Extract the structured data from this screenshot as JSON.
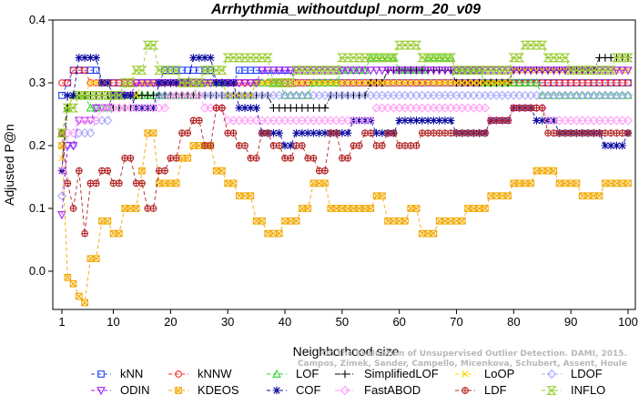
{
  "chart_data": {
    "type": "line",
    "title": "Arrhythmia_withoutdupl_norm_20_v09",
    "xlabel": "Neighborhood size",
    "ylabel": "Adjusted P@n",
    "xlim": [
      1,
      100
    ],
    "ylim": [
      -0.05,
      0.4
    ],
    "x_ticks": [
      1,
      10,
      20,
      30,
      40,
      50,
      60,
      70,
      80,
      90,
      100
    ],
    "y_ticks": [
      0.0,
      0.1,
      0.2,
      0.3,
      0.4
    ],
    "y_tick_labels": [
      "0.0",
      "0.1",
      "0.2",
      "0.3",
      "0.4"
    ],
    "grid": false,
    "legend_position": "bottom",
    "watermark": [
      "On the Evaluation of Unsupervised Outlier Detection. DAMI, 2015.",
      "Campos, Zimek, Sander, Campello, Micenkova, Schubert, Assent, Houle"
    ],
    "series": [
      {
        "name": "kNN",
        "color": "#1f3fff",
        "marker": "square",
        "dash": "4,3",
        "anchors": [
          [
            1,
            0.28
          ],
          [
            2,
            0.3
          ],
          [
            3,
            0.32
          ],
          [
            5,
            0.32
          ],
          [
            8,
            0.3
          ],
          [
            10,
            0.3
          ],
          [
            13,
            0.3
          ],
          [
            16,
            0.3
          ],
          [
            19,
            0.32
          ],
          [
            24,
            0.32
          ],
          [
            28,
            0.3
          ],
          [
            32,
            0.32
          ],
          [
            38,
            0.32
          ],
          [
            40,
            0.32
          ],
          [
            42,
            0.3
          ],
          [
            50,
            0.3
          ],
          [
            55,
            0.3
          ],
          [
            60,
            0.3
          ],
          [
            70,
            0.3
          ],
          [
            80,
            0.3
          ],
          [
            90,
            0.3
          ],
          [
            100,
            0.3
          ]
        ]
      },
      {
        "name": "kNNW",
        "color": "#ff2a2a",
        "marker": "circle",
        "dash": "4,3",
        "anchors": [
          [
            1,
            0.3
          ],
          [
            2,
            0.3
          ],
          [
            3,
            0.32
          ],
          [
            6,
            0.3
          ],
          [
            10,
            0.3
          ],
          [
            14,
            0.3
          ],
          [
            18,
            0.3
          ],
          [
            22,
            0.3
          ],
          [
            28,
            0.3
          ],
          [
            34,
            0.3
          ],
          [
            40,
            0.3
          ],
          [
            50,
            0.3
          ],
          [
            60,
            0.3
          ],
          [
            70,
            0.3
          ],
          [
            80,
            0.3
          ],
          [
            90,
            0.3
          ],
          [
            100,
            0.3
          ]
        ]
      },
      {
        "name": "LOF",
        "color": "#2fd12f",
        "marker": "triangle",
        "dash": "4,3",
        "anchors": [
          [
            1,
            0.22
          ],
          [
            2,
            0.26
          ],
          [
            3,
            0.28
          ],
          [
            6,
            0.26
          ],
          [
            10,
            0.28
          ],
          [
            15,
            0.28
          ],
          [
            20,
            0.28
          ],
          [
            25,
            0.3
          ],
          [
            30,
            0.28
          ],
          [
            35,
            0.3
          ],
          [
            40,
            0.28
          ],
          [
            45,
            0.3
          ],
          [
            50,
            0.32
          ],
          [
            55,
            0.34
          ],
          [
            60,
            0.32
          ],
          [
            65,
            0.34
          ],
          [
            70,
            0.32
          ],
          [
            75,
            0.3
          ],
          [
            80,
            0.3
          ],
          [
            85,
            0.28
          ],
          [
            90,
            0.28
          ],
          [
            95,
            0.28
          ],
          [
            100,
            0.28
          ]
        ]
      },
      {
        "name": "SimplifiedLOF",
        "color": "#000000",
        "marker": "plus",
        "dash": "6,2,1,2",
        "anchors": [
          [
            1,
            0.16
          ],
          [
            2,
            0.26
          ],
          [
            3,
            0.28
          ],
          [
            6,
            0.28
          ],
          [
            10,
            0.26
          ],
          [
            14,
            0.28
          ],
          [
            20,
            0.28
          ],
          [
            26,
            0.28
          ],
          [
            32,
            0.28
          ],
          [
            38,
            0.26
          ],
          [
            42,
            0.26
          ],
          [
            48,
            0.28
          ],
          [
            55,
            0.3
          ],
          [
            58,
            0.32
          ],
          [
            62,
            0.32
          ],
          [
            70,
            0.3
          ],
          [
            80,
            0.32
          ],
          [
            90,
            0.32
          ],
          [
            95,
            0.34
          ],
          [
            100,
            0.34
          ]
        ]
      },
      {
        "name": "LoOP",
        "color": "#ffd000",
        "marker": "x",
        "dash": "4,3",
        "anchors": [
          [
            1,
            0.18
          ],
          [
            2,
            0.26
          ],
          [
            3,
            0.28
          ],
          [
            6,
            0.3
          ],
          [
            10,
            0.28
          ],
          [
            15,
            0.3
          ],
          [
            20,
            0.3
          ],
          [
            25,
            0.3
          ],
          [
            30,
            0.28
          ],
          [
            35,
            0.3
          ],
          [
            40,
            0.3
          ],
          [
            50,
            0.3
          ],
          [
            60,
            0.3
          ],
          [
            70,
            0.3
          ],
          [
            80,
            0.32
          ],
          [
            90,
            0.32
          ],
          [
            95,
            0.32
          ],
          [
            100,
            0.32
          ]
        ]
      },
      {
        "name": "LDOF",
        "color": "#a9a9ff",
        "marker": "diamond",
        "dash": "4,3",
        "anchors": [
          [
            1,
            0.12
          ],
          [
            2,
            0.2
          ],
          [
            4,
            0.22
          ],
          [
            7,
            0.24
          ],
          [
            10,
            0.26
          ],
          [
            14,
            0.26
          ],
          [
            18,
            0.28
          ],
          [
            22,
            0.28
          ],
          [
            26,
            0.28
          ],
          [
            30,
            0.28
          ],
          [
            40,
            0.28
          ],
          [
            50,
            0.28
          ],
          [
            60,
            0.28
          ],
          [
            70,
            0.28
          ],
          [
            80,
            0.28
          ],
          [
            90,
            0.28
          ],
          [
            100,
            0.28
          ]
        ]
      },
      {
        "name": "ODIN",
        "color": "#a020f0",
        "marker": "triangle-down",
        "dash": "4,3",
        "anchors": [
          [
            1,
            0.09
          ],
          [
            2,
            0.2
          ],
          [
            4,
            0.24
          ],
          [
            7,
            0.26
          ],
          [
            10,
            0.28
          ],
          [
            14,
            0.3
          ],
          [
            18,
            0.3
          ],
          [
            24,
            0.3
          ],
          [
            30,
            0.3
          ],
          [
            36,
            0.32
          ],
          [
            40,
            0.32
          ],
          [
            50,
            0.32
          ],
          [
            60,
            0.32
          ],
          [
            70,
            0.32
          ],
          [
            80,
            0.32
          ],
          [
            90,
            0.32
          ],
          [
            100,
            0.32
          ]
        ]
      },
      {
        "name": "KDEOS",
        "color": "#f2a900",
        "marker": "square-x",
        "dash": "4,3",
        "anchors": [
          [
            1,
            0.2
          ],
          [
            2,
            -0.01
          ],
          [
            3,
            -0.02
          ],
          [
            4,
            -0.04
          ],
          [
            5,
            -0.05
          ],
          [
            6,
            0.02
          ],
          [
            8,
            0.08
          ],
          [
            10,
            0.06
          ],
          [
            12,
            0.1
          ],
          [
            15,
            0.16
          ],
          [
            16,
            0.22
          ],
          [
            18,
            0.14
          ],
          [
            22,
            0.18
          ],
          [
            24,
            0.2
          ],
          [
            26,
            0.2
          ],
          [
            28,
            0.16
          ],
          [
            30,
            0.14
          ],
          [
            32,
            0.12
          ],
          [
            35,
            0.08
          ],
          [
            37,
            0.06
          ],
          [
            40,
            0.08
          ],
          [
            43,
            0.1
          ],
          [
            45,
            0.14
          ],
          [
            48,
            0.1
          ],
          [
            52,
            0.1
          ],
          [
            56,
            0.12
          ],
          [
            58,
            0.08
          ],
          [
            62,
            0.1
          ],
          [
            64,
            0.06
          ],
          [
            67,
            0.08
          ],
          [
            72,
            0.1
          ],
          [
            76,
            0.12
          ],
          [
            80,
            0.14
          ],
          [
            84,
            0.16
          ],
          [
            88,
            0.14
          ],
          [
            92,
            0.12
          ],
          [
            96,
            0.14
          ],
          [
            100,
            0.14
          ]
        ]
      },
      {
        "name": "COF",
        "color": "#0a0aa0",
        "marker": "asterisk",
        "dash": "4,3",
        "anchors": [
          [
            1,
            0.16
          ],
          [
            2,
            0.28
          ],
          [
            4,
            0.34
          ],
          [
            6,
            0.34
          ],
          [
            8,
            0.3
          ],
          [
            10,
            0.28
          ],
          [
            14,
            0.26
          ],
          [
            18,
            0.3
          ],
          [
            24,
            0.34
          ],
          [
            28,
            0.3
          ],
          [
            32,
            0.26
          ],
          [
            36,
            0.22
          ],
          [
            40,
            0.2
          ],
          [
            42,
            0.22
          ],
          [
            48,
            0.22
          ],
          [
            52,
            0.24
          ],
          [
            56,
            0.22
          ],
          [
            60,
            0.24
          ],
          [
            66,
            0.24
          ],
          [
            70,
            0.22
          ],
          [
            76,
            0.24
          ],
          [
            80,
            0.26
          ],
          [
            84,
            0.24
          ],
          [
            88,
            0.22
          ],
          [
            92,
            0.22
          ],
          [
            96,
            0.2
          ],
          [
            100,
            0.22
          ]
        ]
      },
      {
        "name": "FastABOD",
        "color": "#ff9df7",
        "marker": "diamond",
        "dash": "6,2,1,2",
        "anchors": [
          [
            1,
            0.16
          ],
          [
            2,
            0.22
          ],
          [
            4,
            0.24
          ],
          [
            8,
            0.26
          ],
          [
            12,
            0.26
          ],
          [
            16,
            0.26
          ],
          [
            20,
            0.28
          ],
          [
            26,
            0.26
          ],
          [
            30,
            0.24
          ],
          [
            34,
            0.24
          ],
          [
            40,
            0.24
          ],
          [
            46,
            0.24
          ],
          [
            50,
            0.24
          ],
          [
            56,
            0.26
          ],
          [
            60,
            0.26
          ],
          [
            66,
            0.26
          ],
          [
            70,
            0.26
          ],
          [
            76,
            0.24
          ],
          [
            80,
            0.26
          ],
          [
            86,
            0.24
          ],
          [
            92,
            0.24
          ],
          [
            96,
            0.24
          ],
          [
            100,
            0.24
          ]
        ]
      },
      {
        "name": "LDF",
        "color": "#b22222",
        "marker": "circle-plus",
        "dash": "4,3",
        "anchors": [
          [
            1,
            0.22
          ],
          [
            2,
            0.14
          ],
          [
            3,
            0.1
          ],
          [
            4,
            0.16
          ],
          [
            5,
            0.06
          ],
          [
            6,
            0.14
          ],
          [
            8,
            0.16
          ],
          [
            10,
            0.14
          ],
          [
            12,
            0.18
          ],
          [
            14,
            0.14
          ],
          [
            16,
            0.1
          ],
          [
            18,
            0.16
          ],
          [
            20,
            0.18
          ],
          [
            22,
            0.22
          ],
          [
            24,
            0.24
          ],
          [
            26,
            0.2
          ],
          [
            28,
            0.26
          ],
          [
            30,
            0.22
          ],
          [
            32,
            0.2
          ],
          [
            34,
            0.18
          ],
          [
            36,
            0.22
          ],
          [
            38,
            0.2
          ],
          [
            40,
            0.18
          ],
          [
            42,
            0.2
          ],
          [
            44,
            0.18
          ],
          [
            46,
            0.16
          ],
          [
            48,
            0.22
          ],
          [
            50,
            0.18
          ],
          [
            52,
            0.2
          ],
          [
            54,
            0.22
          ],
          [
            56,
            0.2
          ],
          [
            58,
            0.22
          ],
          [
            60,
            0.2
          ],
          [
            64,
            0.22
          ],
          [
            68,
            0.22
          ],
          [
            72,
            0.22
          ],
          [
            76,
            0.24
          ],
          [
            80,
            0.26
          ],
          [
            84,
            0.26
          ],
          [
            86,
            0.22
          ],
          [
            90,
            0.22
          ],
          [
            94,
            0.22
          ],
          [
            98,
            0.22
          ],
          [
            100,
            0.22
          ]
        ]
      },
      {
        "name": "INFLO",
        "color": "#9acd32",
        "marker": "hourglass",
        "dash": "4,3",
        "anchors": [
          [
            1,
            0.22
          ],
          [
            2,
            0.26
          ],
          [
            4,
            0.28
          ],
          [
            8,
            0.28
          ],
          [
            12,
            0.3
          ],
          [
            14,
            0.32
          ],
          [
            16,
            0.36
          ],
          [
            18,
            0.32
          ],
          [
            22,
            0.3
          ],
          [
            26,
            0.32
          ],
          [
            30,
            0.34
          ],
          [
            34,
            0.34
          ],
          [
            38,
            0.3
          ],
          [
            42,
            0.32
          ],
          [
            46,
            0.32
          ],
          [
            50,
            0.34
          ],
          [
            56,
            0.34
          ],
          [
            60,
            0.36
          ],
          [
            64,
            0.34
          ],
          [
            70,
            0.32
          ],
          [
            76,
            0.32
          ],
          [
            80,
            0.34
          ],
          [
            82,
            0.36
          ],
          [
            86,
            0.34
          ],
          [
            90,
            0.32
          ],
          [
            94,
            0.32
          ],
          [
            98,
            0.34
          ],
          [
            100,
            0.34
          ]
        ]
      }
    ]
  }
}
